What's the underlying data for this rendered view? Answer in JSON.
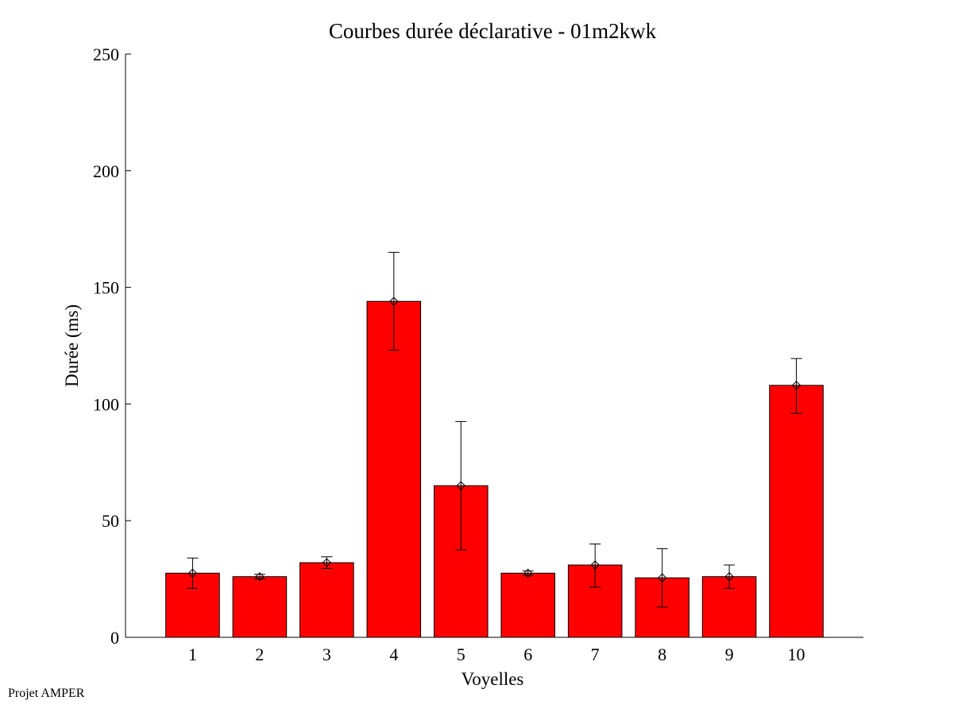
{
  "chart_data": {
    "type": "bar",
    "title": "Courbes durée déclarative - 01m2kwk",
    "xlabel": "Voyelles",
    "ylabel": "Durée (ms)",
    "categories": [
      "1",
      "2",
      "3",
      "4",
      "5",
      "6",
      "7",
      "8",
      "9",
      "10"
    ],
    "values": [
      27.5,
      26,
      32,
      144,
      65,
      27.5,
      31,
      25.5,
      26,
      108
    ],
    "error_low": [
      21,
      25,
      29.5,
      123,
      37.5,
      26.5,
      21.5,
      13,
      21,
      96
    ],
    "error_high": [
      34,
      27,
      34.5,
      165,
      92.5,
      28.5,
      40,
      38,
      31,
      119.5
    ],
    "ylim": [
      0,
      250
    ],
    "yticks": [
      0,
      50,
      100,
      150,
      200,
      250
    ],
    "bar_color": "#ff0000",
    "grid": false
  },
  "footer": {
    "text": "Projet AMPER"
  }
}
